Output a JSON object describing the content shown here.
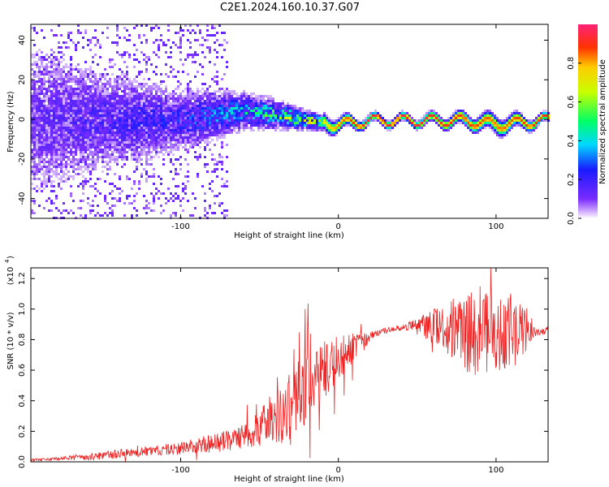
{
  "title": "C2E1.2024.160.10.37.G07",
  "colors": {
    "frame": "#000000",
    "snr_line": "#ee2222",
    "low_amp": "#7a2cff",
    "background": "#ffffff"
  },
  "chart_data": [
    {
      "type": "heatmap",
      "xlabel": "Height of straight line (km)",
      "ylabel": "Frequency (Hz)",
      "xlim": [
        -195,
        133
      ],
      "ylim": [
        -50,
        48
      ],
      "x_ticks": [
        -100,
        0,
        100
      ],
      "y_ticks": [
        -40,
        -20,
        0,
        20,
        40
      ],
      "colorbar": {
        "label": "Normalized spectral amplitude",
        "range": [
          0,
          1
        ],
        "ticks": [
          "0.0",
          "0.2",
          "0.4",
          "0.6",
          "0.8"
        ],
        "colormap": "rainbow (violet to red)"
      },
      "description_series": [
        {
          "x": -190,
          "center_hz": 0,
          "spread_hz": 45,
          "peak_amp": 0.12
        },
        {
          "x": -150,
          "center_hz": 0,
          "spread_hz": 30,
          "peak_amp": 0.15
        },
        {
          "x": -100,
          "center_hz": 0,
          "spread_hz": 18,
          "peak_amp": 0.2
        },
        {
          "x": -60,
          "center_hz": 5,
          "spread_hz": 10,
          "peak_amp": 0.35
        },
        {
          "x": -40,
          "center_hz": 3,
          "spread_hz": 8,
          "peak_amp": 0.45
        },
        {
          "x": -20,
          "center_hz": 0,
          "spread_hz": 5,
          "peak_amp": 0.6
        },
        {
          "x": 0,
          "center_hz": -2,
          "spread_hz": 3,
          "peak_amp": 0.85
        },
        {
          "x": 20,
          "center_hz": 0,
          "spread_hz": 2,
          "peak_amp": 0.95
        },
        {
          "x": 50,
          "center_hz": 0,
          "spread_hz": 2,
          "peak_amp": 0.95
        },
        {
          "x": 80,
          "center_hz": 0,
          "spread_hz": 3,
          "peak_amp": 0.9
        },
        {
          "x": 100,
          "center_hz": -2,
          "spread_hz": 4,
          "peak_amp": 0.85
        },
        {
          "x": 130,
          "center_hz": 0,
          "spread_hz": 2,
          "peak_amp": 0.9
        }
      ]
    },
    {
      "type": "line",
      "xlabel": "Height of straight line (km)",
      "ylabel": "SNR (10 * v/v)",
      "yscale_label": "(x10",
      "yscale_exp": "4",
      "xlim": [
        -195,
        133
      ],
      "ylim": [
        0,
        1.27
      ],
      "x_ticks": [
        -100,
        0,
        100
      ],
      "y_ticks": [
        "0.0",
        "0.2",
        "0.4",
        "0.6",
        "0.8",
        "1.0",
        "1.2"
      ],
      "series": [
        {
          "x": [
            -195,
            -180,
            -160,
            -140,
            -120,
            -100,
            -80,
            -70,
            -60,
            -50,
            -40,
            -30,
            -20,
            -10,
            0,
            10,
            20,
            30,
            40,
            50,
            60,
            70,
            80,
            90,
            100,
            110,
            120,
            125,
            133
          ],
          "y_base": [
            0.01,
            0.02,
            0.03,
            0.05,
            0.07,
            0.09,
            0.12,
            0.14,
            0.17,
            0.22,
            0.3,
            0.38,
            0.5,
            0.6,
            0.68,
            0.75,
            0.82,
            0.86,
            0.88,
            0.9,
            0.88,
            0.86,
            0.84,
            0.86,
            0.85,
            0.85,
            0.86,
            0.85,
            0.86
          ],
          "y_noise": [
            0.01,
            0.01,
            0.02,
            0.03,
            0.03,
            0.04,
            0.06,
            0.07,
            0.08,
            0.12,
            0.18,
            0.22,
            0.25,
            0.2,
            0.15,
            0.1,
            0.03,
            0.02,
            0.02,
            0.04,
            0.12,
            0.2,
            0.25,
            0.3,
            0.28,
            0.25,
            0.15,
            0.03,
            0.03
          ]
        }
      ]
    }
  ]
}
